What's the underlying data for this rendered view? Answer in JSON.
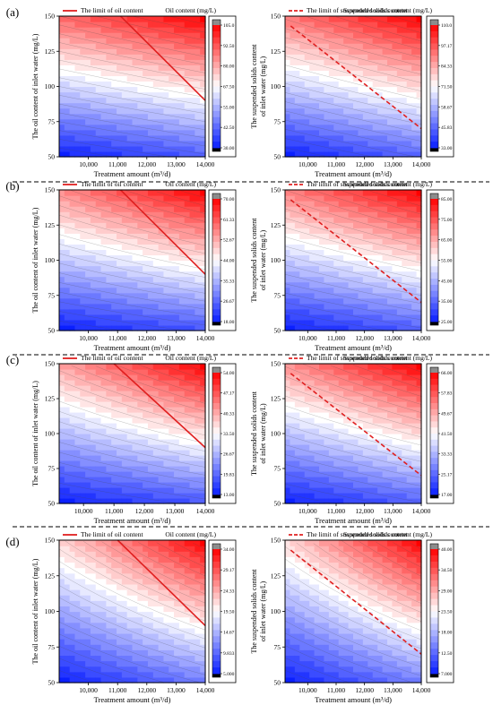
{
  "chart_data": [
    {
      "type": "heatmap",
      "panel": "a",
      "panel_label": "(a)",
      "variable": "oil",
      "xlabel": "Treatment amount (m³/d)",
      "ylabel": [
        "The oil content of inlet water (mg/L)"
      ],
      "colorbar_title": "Oil content (mg/L)",
      "legend": "The limit of oil content",
      "xlim": [
        9000,
        14000
      ],
      "ylim": [
        50,
        150
      ],
      "xticks": [
        "10,000",
        "11,000",
        "12,000",
        "13,000",
        "14,000"
      ],
      "yticks": [
        "50",
        "75",
        "100",
        "125",
        "150"
      ],
      "colorbar_ticks": [
        "105.0",
        "92.50",
        "80.00",
        "67.50",
        "55.00",
        "42.50",
        "30.00"
      ],
      "value_range": [
        30,
        105
      ],
      "corners": {
        "x_min_y_min": 30,
        "x_max_y_min": 40,
        "x_min_y_max": 90,
        "x_max_y_max": 105
      },
      "limit_line": [
        [
          11100,
          150
        ],
        [
          14000,
          90
        ]
      ]
    },
    {
      "type": "heatmap",
      "panel": "a",
      "variable": "suspended solids",
      "xlabel": "Treatment amount (m³/d)",
      "ylabel": [
        "The suspended solids content",
        "of inlet water (mg/L)"
      ],
      "colorbar_title": "Suspended solids content (mg/L)",
      "legend": "The limit of suspended solids content",
      "xlim": [
        9200,
        14000
      ],
      "ylim": [
        50,
        150
      ],
      "xticks": [
        "10,000",
        "11,000",
        "12,000",
        "13,000",
        "14,000"
      ],
      "yticks": [
        "50",
        "75",
        "100",
        "125",
        "150"
      ],
      "colorbar_ticks": [
        "110.0",
        "97.17",
        "84.33",
        "71.50",
        "58.67",
        "45.83",
        "33.00"
      ],
      "value_range": [
        33,
        110
      ],
      "corners": {
        "x_min_y_min": 33,
        "x_max_y_min": 45,
        "x_min_y_max": 92,
        "x_max_y_max": 110
      },
      "limit_line": [
        [
          9400,
          143
        ],
        [
          14000,
          70
        ]
      ]
    },
    {
      "type": "heatmap",
      "panel": "b",
      "panel_label": "(b)",
      "variable": "oil",
      "xlabel": "Treatment amount (m³/d)",
      "ylabel": [
        "The oil content of inlet water (mg/L)"
      ],
      "colorbar_title": "Oil content (mg/L)",
      "legend": "The limit of oil content",
      "xlim": [
        9000,
        14000
      ],
      "ylim": [
        50,
        150
      ],
      "xticks": [
        "10,000",
        "11,000",
        "12,000",
        "13,000",
        "14,000"
      ],
      "yticks": [
        "50",
        "75",
        "100",
        "125",
        "150"
      ],
      "colorbar_ticks": [
        "70.00",
        "61.33",
        "52.67",
        "44.00",
        "35.33",
        "26.67",
        "18.00"
      ],
      "value_range": [
        18,
        70
      ],
      "corners": {
        "x_min_y_min": 18,
        "x_max_y_min": 24,
        "x_min_y_max": 56,
        "x_max_y_max": 70
      },
      "limit_line": [
        [
          11100,
          150
        ],
        [
          14000,
          90
        ]
      ]
    },
    {
      "type": "heatmap",
      "panel": "b",
      "variable": "suspended solids",
      "xlabel": "Treatment amount (m³/d)",
      "ylabel": [
        "The suspended solids content",
        "of inlet water (mg/L)"
      ],
      "colorbar_title": "Suspended solids content (mg/L)",
      "legend": "The limit of suspended solids content",
      "xlim": [
        9200,
        14000
      ],
      "ylim": [
        50,
        150
      ],
      "xticks": [
        "10,000",
        "11,000",
        "12,000",
        "13,000",
        "14,000"
      ],
      "yticks": [
        "50",
        "75",
        "100",
        "125",
        "150"
      ],
      "colorbar_ticks": [
        "85.00",
        "75.00",
        "65.00",
        "55.00",
        "45.00",
        "35.00",
        "25.00"
      ],
      "value_range": [
        25,
        85
      ],
      "corners": {
        "x_min_y_min": 25,
        "x_max_y_min": 33,
        "x_min_y_max": 70,
        "x_max_y_max": 85
      },
      "limit_line": [
        [
          9400,
          143
        ],
        [
          14000,
          70
        ]
      ]
    },
    {
      "type": "heatmap",
      "panel": "c",
      "panel_label": "(c)",
      "variable": "oil",
      "xlabel": "Treatment amount (m³/d)",
      "ylabel": [
        "The oil content of inlet water (mg/L)"
      ],
      "colorbar_title": "Oil content (mg/L)",
      "legend": "The limit of oil content",
      "xlim": [
        9200,
        14000
      ],
      "ylim": [
        50,
        150
      ],
      "xticks": [
        "10,000",
        "11,000",
        "12,000",
        "13,000",
        "14,000"
      ],
      "yticks": [
        "50",
        "75",
        "100",
        "125",
        "150"
      ],
      "colorbar_ticks": [
        "54.00",
        "47.17",
        "40.33",
        "33.50",
        "26.67",
        "19.83",
        "13.00"
      ],
      "value_range": [
        13,
        54
      ],
      "corners": {
        "x_min_y_min": 13,
        "x_max_y_min": 18,
        "x_min_y_max": 41,
        "x_max_y_max": 54
      },
      "limit_line": [
        [
          11000,
          150
        ],
        [
          14000,
          90
        ]
      ]
    },
    {
      "type": "heatmap",
      "panel": "c",
      "variable": "suspended solids",
      "xlabel": "Treatment amount (m³/d)",
      "ylabel": [
        "The suspended solids content",
        "of inlet water (mg/L)"
      ],
      "colorbar_title": "Suspended solids content (mg/L)",
      "legend": "The limit of suspended solids content",
      "xlim": [
        9200,
        14000
      ],
      "ylim": [
        50,
        150
      ],
      "xticks": [
        "10,000",
        "11,000",
        "12,000",
        "13,000",
        "14,000"
      ],
      "yticks": [
        "50",
        "75",
        "100",
        "125",
        "150"
      ],
      "colorbar_ticks": [
        "66.00",
        "57.83",
        "49.67",
        "41.50",
        "33.33",
        "25.17",
        "17.00"
      ],
      "value_range": [
        17,
        66
      ],
      "corners": {
        "x_min_y_min": 17,
        "x_max_y_min": 24,
        "x_min_y_max": 52,
        "x_max_y_max": 66
      },
      "limit_line": [
        [
          9400,
          143
        ],
        [
          14000,
          70
        ]
      ]
    },
    {
      "type": "heatmap",
      "panel": "d",
      "panel_label": "(d)",
      "variable": "oil",
      "xlabel": "Treatment amount (m³/d)",
      "ylabel": [
        "The oil content of inlet water (mg/L)"
      ],
      "colorbar_title": "Oil content (mg/L)",
      "legend": "The limit of oil content",
      "xlim": [
        9000,
        14000
      ],
      "ylim": [
        50,
        150
      ],
      "xticks": [
        "10,000",
        "11,000",
        "12,000",
        "13,000",
        "14,000"
      ],
      "yticks": [
        "50",
        "75",
        "100",
        "125",
        "150"
      ],
      "colorbar_ticks": [
        "34.00",
        "29.17",
        "24.33",
        "19.50",
        "14.67",
        "9.833",
        "5.000"
      ],
      "value_range": [
        5,
        34
      ],
      "corners": {
        "x_min_y_min": 5,
        "x_max_y_min": 11,
        "x_min_y_max": 22,
        "x_max_y_max": 34
      },
      "limit_line": [
        [
          11000,
          150
        ],
        [
          14000,
          90
        ]
      ]
    },
    {
      "type": "heatmap",
      "panel": "d",
      "variable": "suspended solids",
      "xlabel": "Treatment amount (m³/d)",
      "ylabel": [
        "The suspended solids content",
        "of inlet water (mg/L)"
      ],
      "colorbar_title": "Suspended solids content (mg/L)",
      "legend": "The limit of suspended solids content",
      "xlim": [
        9200,
        14000
      ],
      "ylim": [
        50,
        150
      ],
      "xticks": [
        "10,000",
        "11,000",
        "12,000",
        "13,000",
        "14,000"
      ],
      "yticks": [
        "50",
        "75",
        "100",
        "125",
        "150"
      ],
      "colorbar_ticks": [
        "40.00",
        "34.50",
        "29.00",
        "23.50",
        "18.00",
        "12.50",
        "7.000"
      ],
      "value_range": [
        7,
        40
      ],
      "corners": {
        "x_min_y_min": 7,
        "x_max_y_min": 14,
        "x_min_y_max": 26,
        "x_max_y_max": 40
      },
      "limit_line": [
        [
          9400,
          143
        ],
        [
          14000,
          70
        ]
      ]
    }
  ],
  "colors": {
    "low": "#0a1fff",
    "mid": "#ffffff",
    "high": "#ff0000",
    "limit_line": "#e02020",
    "over_range": "#8c8c8c",
    "under_range": "#000000"
  }
}
